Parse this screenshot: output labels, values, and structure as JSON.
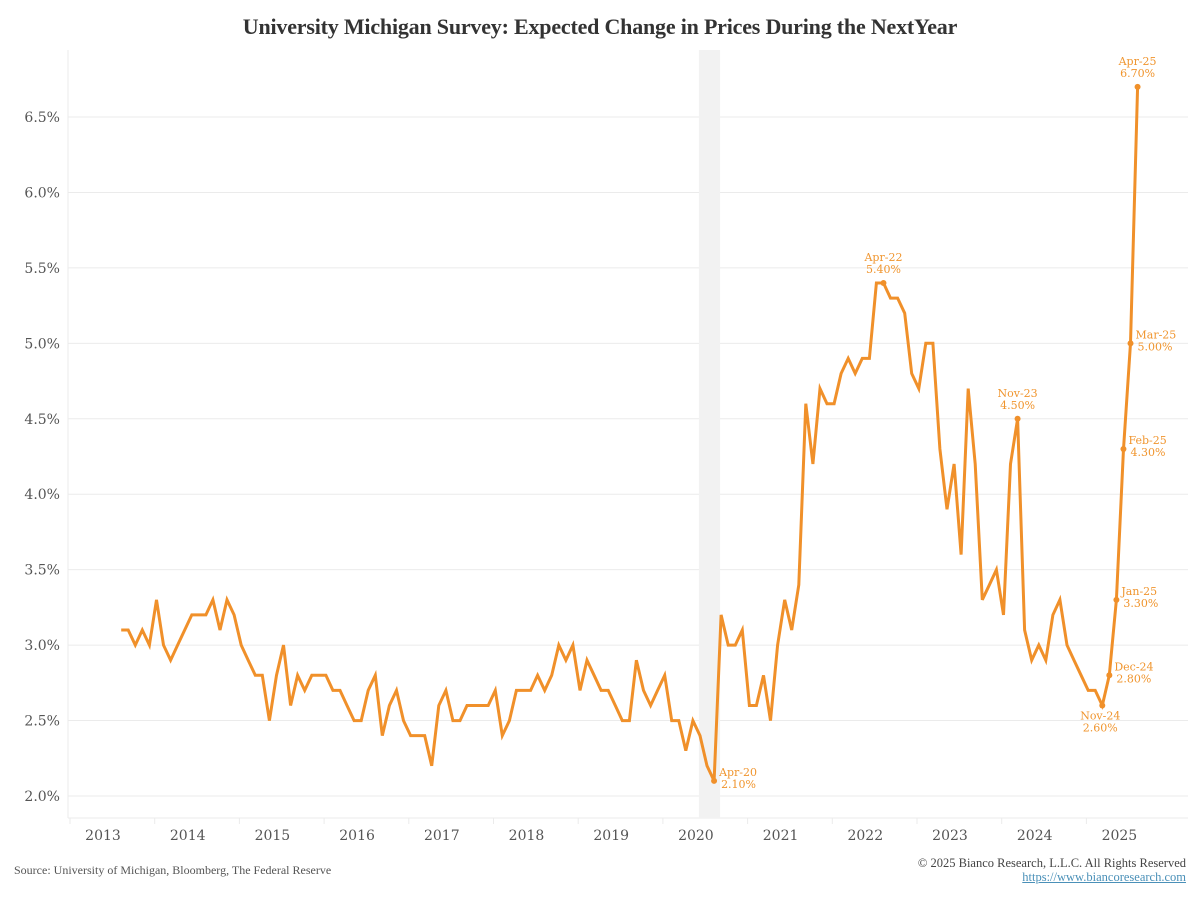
{
  "title": "University Michigan Survey: Expected Change in Prices During the NextYear",
  "footer": {
    "source": "Source: University of Michigan, Bloomberg, The Federal Reserve",
    "copyright": "© 2025 Bianco Research, L.L.C. All Rights Reserved",
    "link": "https://www.biancoresearch.com"
  },
  "colors": {
    "line": "#f0902a",
    "grid": "#ebebeb",
    "recession": "#f2f2f2",
    "annotation": "#f0952e"
  },
  "chart_data": {
    "type": "line",
    "title": "University Michigan Survey: Expected Change in Prices During the NextYear",
    "xlabel": "",
    "ylabel": "",
    "ylim": [
      1.9,
      6.85
    ],
    "yticks": [
      "2.0%",
      "2.5%",
      "3.0%",
      "3.5%",
      "4.0%",
      "4.5%",
      "5.0%",
      "5.5%",
      "6.0%",
      "6.5%"
    ],
    "ytick_values": [
      2.0,
      2.5,
      3.0,
      3.5,
      4.0,
      4.5,
      5.0,
      5.5,
      6.0,
      6.5
    ],
    "xticks": [
      "2013",
      "2014",
      "2015",
      "2016",
      "2017",
      "2018",
      "2019",
      "2020",
      "2021",
      "2022",
      "2023",
      "2024",
      "2025"
    ],
    "xlim": [
      "2012-10",
      "2025-10"
    ],
    "grid": true,
    "shaded_periods": [
      {
        "label": "recession",
        "start": "2020-02",
        "end": "2020-04"
      }
    ],
    "series": [
      {
        "name": "Expected Change in Prices During the Next Year (%)",
        "start": "2013-04",
        "frequency": "monthly",
        "values": [
          3.1,
          3.1,
          3.0,
          3.1,
          3.0,
          3.3,
          3.0,
          2.9,
          3.0,
          3.1,
          3.2,
          3.2,
          3.2,
          3.3,
          3.1,
          3.3,
          3.2,
          3.0,
          2.9,
          2.8,
          2.8,
          2.5,
          2.8,
          3.0,
          2.6,
          2.8,
          2.7,
          2.8,
          2.8,
          2.8,
          2.7,
          2.7,
          2.6,
          2.5,
          2.5,
          2.7,
          2.8,
          2.4,
          2.6,
          2.7,
          2.5,
          2.4,
          2.4,
          2.4,
          2.2,
          2.6,
          2.7,
          2.5,
          2.5,
          2.6,
          2.6,
          2.6,
          2.6,
          2.7,
          2.4,
          2.5,
          2.7,
          2.7,
          2.7,
          2.8,
          2.7,
          2.8,
          3.0,
          2.9,
          3.0,
          2.7,
          2.9,
          2.8,
          2.7,
          2.7,
          2.6,
          2.5,
          2.5,
          2.9,
          2.7,
          2.6,
          2.7,
          2.8,
          2.5,
          2.5,
          2.3,
          2.5,
          2.4,
          2.2,
          2.1,
          3.2,
          3.0,
          3.0,
          3.1,
          2.6,
          2.6,
          2.8,
          2.5,
          3.0,
          3.3,
          3.1,
          3.4,
          4.6,
          4.2,
          4.7,
          4.6,
          4.6,
          4.8,
          4.9,
          4.8,
          4.9,
          4.9,
          5.4,
          5.4,
          5.3,
          5.3,
          5.2,
          4.8,
          4.7,
          5.0,
          5.0,
          4.3,
          3.9,
          4.2,
          3.6,
          4.7,
          4.2,
          3.3,
          3.4,
          3.5,
          3.2,
          4.2,
          4.5,
          3.1,
          2.9,
          3.0,
          2.9,
          3.2,
          3.3,
          3.0,
          2.9,
          2.8,
          2.7,
          2.7,
          2.6,
          2.8,
          3.3,
          4.3,
          5.0,
          6.7
        ]
      }
    ],
    "annotations": [
      {
        "date": "2020-04",
        "label": "Apr-20",
        "value_label": "2.10%",
        "value": 2.1,
        "placement": "right"
      },
      {
        "date": "2022-04",
        "label": "Apr-22",
        "value_label": "5.40%",
        "value": 5.4,
        "placement": "above"
      },
      {
        "date": "2023-11",
        "label": "Nov-23",
        "value_label": "4.50%",
        "value": 4.5,
        "placement": "above"
      },
      {
        "date": "2024-11",
        "label": "Nov-24",
        "value_label": "2.60%",
        "value": 2.6,
        "placement": "below"
      },
      {
        "date": "2024-12",
        "label": "Dec-24",
        "value_label": "2.80%",
        "value": 2.8,
        "placement": "right"
      },
      {
        "date": "2025-01",
        "label": "Jan-25",
        "value_label": "3.30%",
        "value": 3.3,
        "placement": "right"
      },
      {
        "date": "2025-02",
        "label": "Feb-25",
        "value_label": "4.30%",
        "value": 4.3,
        "placement": "right"
      },
      {
        "date": "2025-03",
        "label": "Mar-25",
        "value_label": "5.00%",
        "value": 5.0,
        "placement": "right"
      },
      {
        "date": "2025-04",
        "label": "Apr-25",
        "value_label": "6.70%",
        "value": 6.7,
        "placement": "above"
      }
    ]
  }
}
